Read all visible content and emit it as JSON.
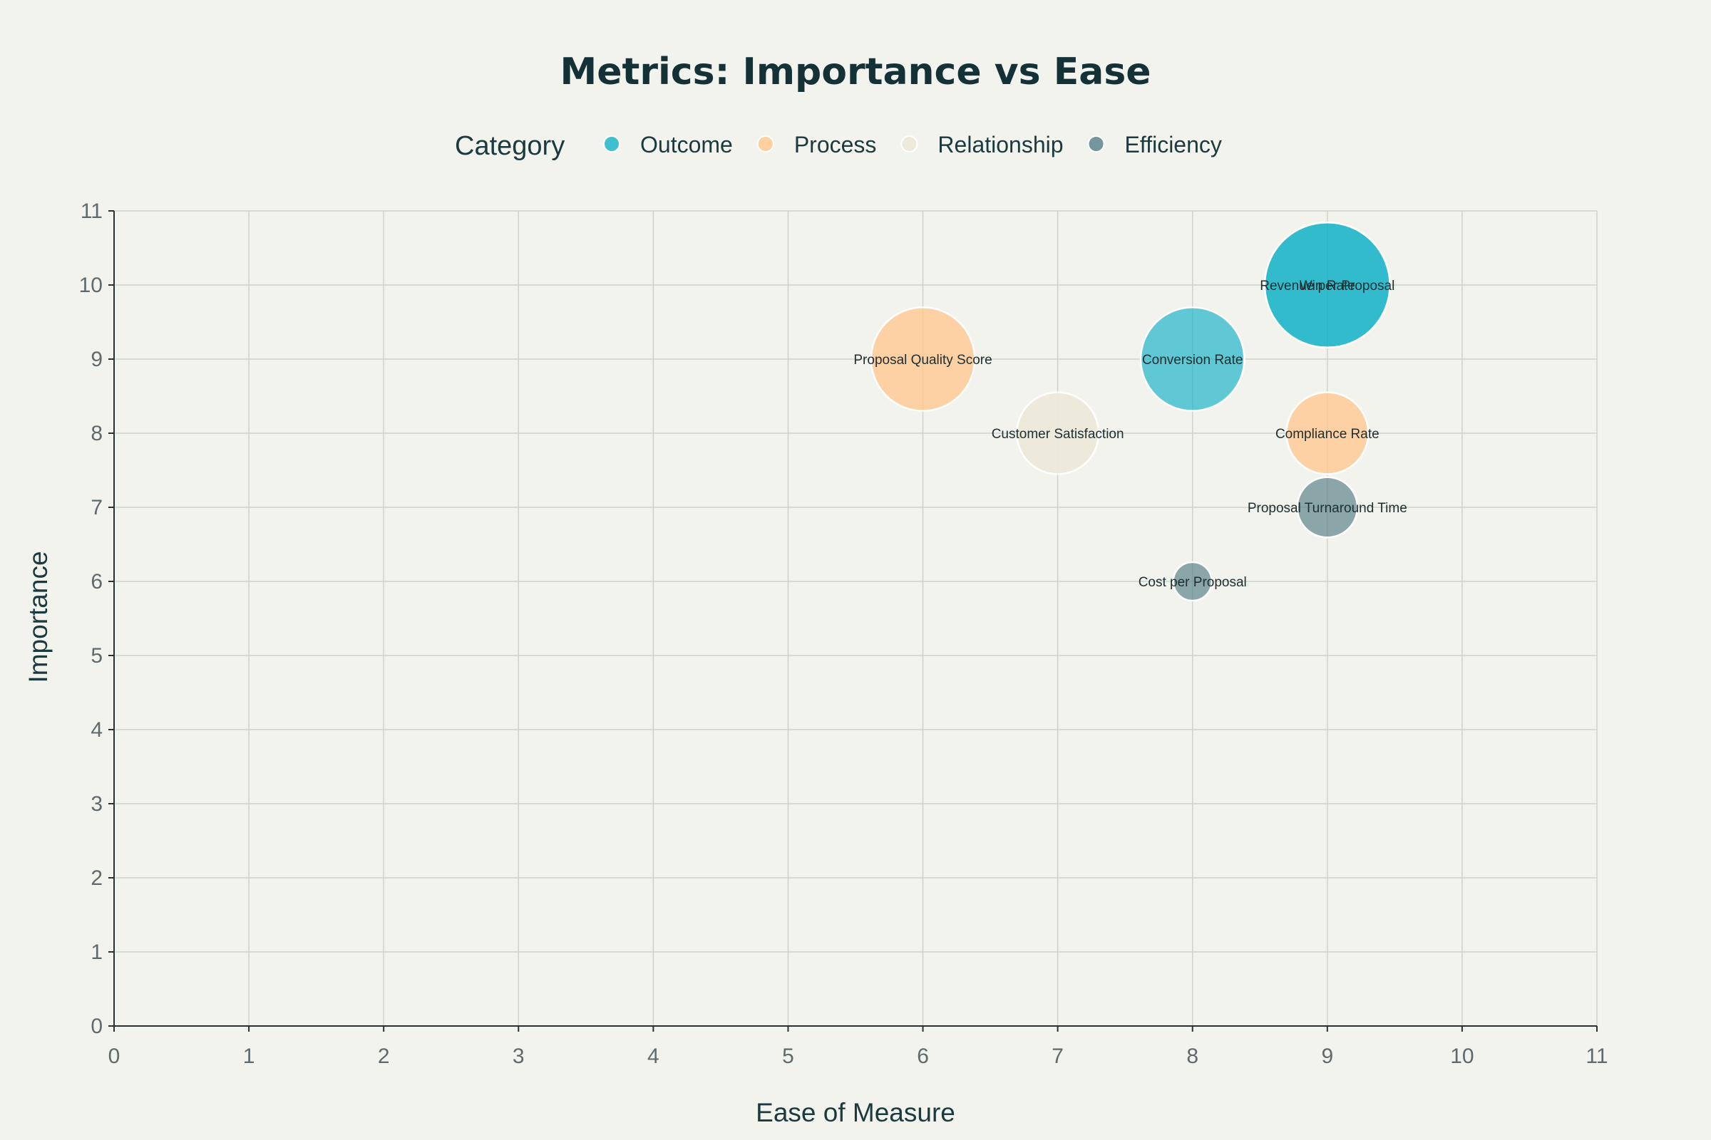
{
  "chart_data": {
    "type": "scatter",
    "title": "Metrics: Importance vs Ease",
    "xlabel": "Ease of Measure",
    "ylabel": "Importance",
    "xlim": [
      0,
      11
    ],
    "ylim": [
      0,
      11
    ],
    "x_ticks": [
      0,
      1,
      2,
      3,
      4,
      5,
      6,
      7,
      8,
      9,
      10,
      11
    ],
    "y_ticks": [
      0,
      1,
      2,
      3,
      4,
      5,
      6,
      7,
      8,
      9,
      10,
      11
    ],
    "grid": true,
    "legend": {
      "title": "Category",
      "position": "top-center",
      "orientation": "horizontal"
    },
    "size_encoding": "bubble size grows with importance",
    "series": [
      {
        "name": "Outcome",
        "color": "#1fb5c9",
        "opacity": 0.7,
        "points": [
          {
            "label": "Win Rate",
            "x": 9,
            "y": 10
          },
          {
            "label": "Revenue per Proposal",
            "x": 9,
            "y": 10
          },
          {
            "label": "Conversion Rate",
            "x": 8,
            "y": 9
          }
        ]
      },
      {
        "name": "Process",
        "color": "#ffc891",
        "opacity": 0.8,
        "points": [
          {
            "label": "Proposal Quality Score",
            "x": 6,
            "y": 9
          },
          {
            "label": "Compliance Rate",
            "x": 9,
            "y": 8
          }
        ]
      },
      {
        "name": "Relationship",
        "color": "#ece9d8",
        "opacity": 0.9,
        "points": [
          {
            "label": "Customer Satisfaction",
            "x": 7,
            "y": 8
          }
        ]
      },
      {
        "name": "Efficiency",
        "color": "#5e858c",
        "opacity": 0.7,
        "points": [
          {
            "label": "Proposal Turnaround Time",
            "x": 9,
            "y": 7
          },
          {
            "label": "Cost per Proposal",
            "x": 8,
            "y": 6
          }
        ]
      }
    ]
  }
}
